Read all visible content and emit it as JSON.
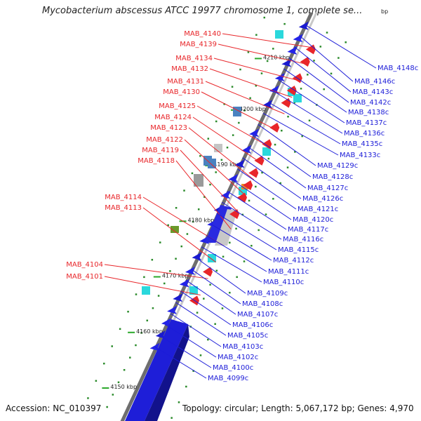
{
  "title": "Mycobacterium abscessus ATCC 19977 chromosome 1, complete se...",
  "title_unit": "bp",
  "accession": "Accession: NC_010397",
  "summary": "Topology: circular; Length: 5,067,172 bp; Genes: 4,970",
  "colors": {
    "forward_label": "#e8262a",
    "reverse_label": "#1c1cd8",
    "backbone": "#8a8a8a",
    "tick": "#2a8a2a"
  },
  "scale_labels": [
    "4210 kbp",
    "4200 kbp",
    "4190 kbp",
    "4180 kbp",
    "4170 kbp",
    "4160 kbp",
    "4150 kbp"
  ],
  "forward_genes": [
    "MAB_4140",
    "MAB_4139",
    "MAB_4134",
    "MAB_4132",
    "MAB_4131",
    "MAB_4130",
    "MAB_4125",
    "MAB_4124",
    "MAB_4123",
    "MAB_4122",
    "MAB_4119",
    "MAB_4118",
    "MAB_4114",
    "MAB_4113",
    "MAB_4104",
    "MAB_4101"
  ],
  "reverse_genes": [
    "MAB_4148c",
    "MAB_4146c",
    "MAB_4143c",
    "MAB_4142c",
    "MAB_4138c",
    "MAB_4137c",
    "MAB_4136c",
    "MAB_4135c",
    "MAB_4133c",
    "MAB_4129c",
    "MAB_4128c",
    "MAB_4127c",
    "MAB_4126c",
    "MAB_4121c",
    "MAB_4120c",
    "MAB_4117c",
    "MAB_4116c",
    "MAB_4115c",
    "MAB_4112c",
    "MAB_4111c",
    "MAB_4110c",
    "MAB_4109c",
    "MAB_4108c",
    "MAB_4107c",
    "MAB_4106c",
    "MAB_4105c",
    "MAB_4103c",
    "MAB_4102c",
    "MAB_4100c",
    "MAB_4099c"
  ]
}
